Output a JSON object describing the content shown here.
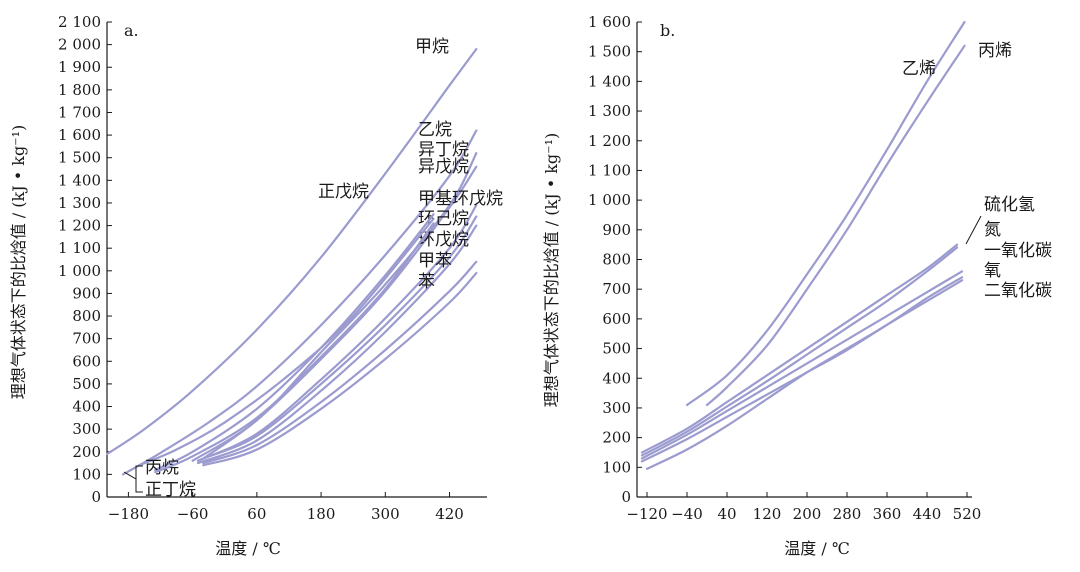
{
  "chart_data": [
    {
      "panel": "a.",
      "type": "line",
      "xlabel": "温度 / ℃",
      "ylabel": "理想气体状态下的比焓值 / (kJ • kg⁻¹)",
      "xlim": [
        -220,
        490
      ],
      "ylim": [
        0,
        2100
      ],
      "xticks": [
        -180,
        -60,
        60,
        180,
        300,
        420
      ],
      "xtick_labels": [
        "−180",
        "−60",
        "60",
        "180",
        "300",
        "420"
      ],
      "yticks": [
        0,
        100,
        200,
        300,
        400,
        500,
        600,
        700,
        800,
        900,
        1000,
        1100,
        1200,
        1300,
        1400,
        1500,
        1600,
        1700,
        1800,
        1900,
        2000,
        2100
      ],
      "ytick_labels": [
        "0",
        "100",
        "200",
        "300",
        "400",
        "500",
        "600",
        "700",
        "800",
        "900",
        "1 000",
        "1 100",
        "1 200",
        "1 300",
        "1 400",
        "1 500",
        "1 600",
        "1 700",
        "1 800",
        "1 900",
        "2 000",
        "2 100"
      ],
      "line_color": "#9b9bd0",
      "series": [
        {
          "name": "甲烷",
          "x": [
            -220,
            -150,
            -60,
            60,
            180,
            300,
            420,
            470
          ],
          "y": [
            190,
            300,
            470,
            740,
            1060,
            1430,
            1820,
            1980
          ]
        },
        {
          "name": "乙烷",
          "x": [
            -190,
            -120,
            -30,
            60,
            180,
            300,
            420,
            470
          ],
          "y": [
            100,
            195,
            330,
            490,
            760,
            1070,
            1420,
            1620
          ]
        },
        {
          "name": "异丁烷",
          "x": [
            -60,
            60,
            180,
            300,
            420,
            470
          ],
          "y": [
            160,
            340,
            640,
            940,
            1290,
            1520
          ]
        },
        {
          "name": "异戊烷",
          "x": [
            -40,
            60,
            180,
            300,
            420,
            470
          ],
          "y": [
            170,
            340,
            610,
            910,
            1280,
            1460
          ]
        },
        {
          "name": "甲基环戊烷",
          "x": [
            -50,
            60,
            180,
            300,
            420,
            470
          ],
          "y": [
            160,
            280,
            520,
            790,
            1100,
            1290
          ]
        },
        {
          "name": "环己烷",
          "x": [
            -40,
            60,
            180,
            300,
            420,
            470
          ],
          "y": [
            170,
            270,
            500,
            760,
            1060,
            1240
          ]
        },
        {
          "name": "环戊烷",
          "x": [
            -50,
            60,
            180,
            300,
            420,
            470
          ],
          "y": [
            150,
            250,
            470,
            730,
            1030,
            1200
          ]
        },
        {
          "name": "甲苯",
          "x": [
            -40,
            60,
            180,
            300,
            420,
            470
          ],
          "y": [
            150,
            230,
            420,
            650,
            910,
            1040
          ]
        },
        {
          "name": "苯",
          "x": [
            -40,
            60,
            180,
            300,
            420,
            470
          ],
          "y": [
            140,
            210,
            390,
            610,
            860,
            990
          ]
        },
        {
          "name": "正戊烷",
          "x": [
            -130,
            -60,
            60,
            180,
            300,
            390
          ],
          "y": [
            120,
            200,
            390,
            660,
            980,
            1250
          ]
        },
        {
          "name": "丙烷",
          "x": [
            -160,
            -90,
            0,
            120,
            240,
            390
          ],
          "y": [
            140,
            210,
            330,
            540,
            800,
            1230
          ]
        },
        {
          "name": "正丁烷",
          "x": [
            -130,
            -60,
            60,
            180,
            300,
            390
          ],
          "y": [
            110,
            180,
            350,
            620,
            920,
            1210
          ]
        }
      ]
    },
    {
      "panel": "b.",
      "type": "line",
      "xlabel": "温度 / ℃",
      "ylabel": "理想气体状态下的比焓值 / (kJ • kg⁻¹)",
      "xlim": [
        -140,
        530
      ],
      "ylim": [
        0,
        1600
      ],
      "xticks": [
        -120,
        -40,
        40,
        120,
        200,
        280,
        360,
        440,
        520
      ],
      "xtick_labels": [
        "−120",
        "−40",
        "40",
        "120",
        "200",
        "280",
        "360",
        "440",
        "520"
      ],
      "yticks": [
        0,
        100,
        200,
        300,
        400,
        500,
        600,
        700,
        800,
        900,
        1000,
        1100,
        1200,
        1300,
        1400,
        1500,
        1600
      ],
      "ytick_labels": [
        "0",
        "100",
        "200",
        "300",
        "400",
        "500",
        "600",
        "700",
        "800",
        "900",
        "1 000",
        "1 100",
        "1 200",
        "1 300",
        "1 400",
        "1 500",
        "1 600"
      ],
      "line_color": "#9b9bd0",
      "series": [
        {
          "name": "乙烯",
          "x": [
            -40,
            40,
            120,
            200,
            280,
            360,
            440,
            515
          ],
          "y": [
            310,
            410,
            560,
            750,
            950,
            1170,
            1400,
            1600
          ]
        },
        {
          "name": "丙烯",
          "x": [
            0,
            40,
            120,
            200,
            280,
            360,
            440,
            515
          ],
          "y": [
            310,
            370,
            510,
            700,
            900,
            1120,
            1330,
            1520
          ]
        },
        {
          "name": "硫化氢",
          "x": [
            -130,
            -40,
            40,
            120,
            200,
            280,
            360,
            440,
            500
          ],
          "y": [
            150,
            230,
            320,
            410,
            500,
            590,
            680,
            770,
            850
          ]
        },
        {
          "name": "氮",
          "x": [
            -130,
            -40,
            40,
            120,
            200,
            280,
            360,
            440,
            500
          ],
          "y": [
            140,
            220,
            305,
            390,
            480,
            570,
            660,
            760,
            840
          ]
        },
        {
          "name": "一氧化碳",
          "x": [
            -130,
            -40,
            40,
            120,
            200,
            280,
            360,
            440,
            510
          ],
          "y": [
            130,
            210,
            290,
            370,
            450,
            530,
            610,
            690,
            760
          ]
        },
        {
          "name": "氧",
          "x": [
            -130,
            -40,
            40,
            120,
            200,
            280,
            360,
            440,
            510
          ],
          "y": [
            120,
            195,
            270,
            345,
            420,
            495,
            580,
            660,
            730
          ]
        },
        {
          "name": "二氧化碳",
          "x": [
            -120,
            -40,
            40,
            120,
            200,
            280,
            360,
            440,
            510
          ],
          "y": [
            95,
            160,
            240,
            330,
            420,
            500,
            580,
            670,
            740
          ]
        }
      ]
    }
  ]
}
